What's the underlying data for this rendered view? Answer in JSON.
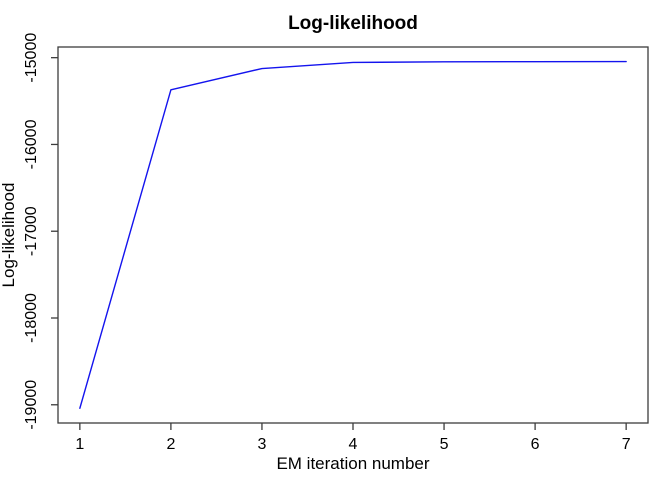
{
  "figure": {
    "background_color": "#FFFFFF"
  },
  "chart_data": {
    "type": "line",
    "title": "Log-likelihood",
    "xlabel": "EM iteration number",
    "ylabel": "Log-likelihood",
    "series": [
      {
        "name": "log-likelihood",
        "x": [
          1,
          2,
          3,
          4,
          5,
          6,
          7
        ],
        "y": [
          -19040,
          -15370,
          -15125,
          -15055,
          -15048,
          -15046,
          -15045
        ],
        "color": "#1414EE"
      }
    ],
    "xlim": [
      0.76,
      7.24
    ],
    "ylim": [
      -19210,
      -14877
    ],
    "xticks": [
      1,
      2,
      3,
      4,
      5,
      6,
      7
    ],
    "yticks": [
      -19000,
      -18000,
      -17000,
      -16000,
      -15000
    ],
    "grid": false,
    "legend": "none",
    "axis_color": "#3C3C3C"
  }
}
